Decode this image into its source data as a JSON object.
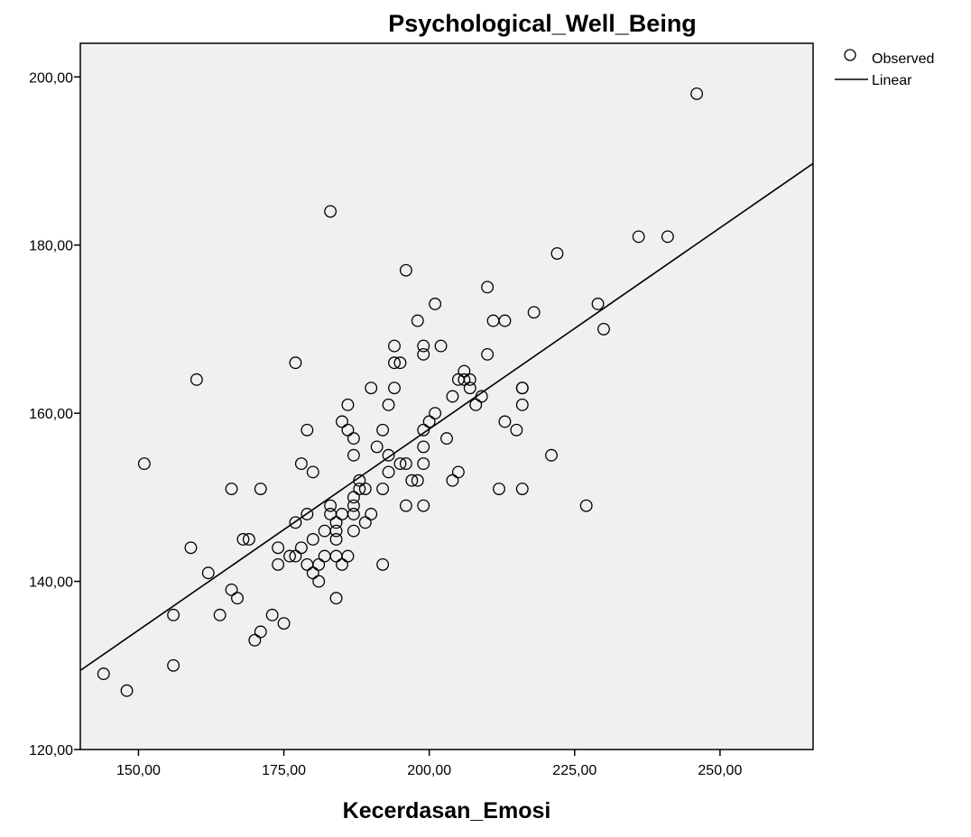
{
  "chart_data": {
    "type": "scatter",
    "title": "Psychological_Well_Being",
    "xlabel": "Kecerdasan_Emosi",
    "ylabel": "",
    "xlim": [
      140,
      266
    ],
    "ylim": [
      120,
      204
    ],
    "x_ticks": [
      150,
      175,
      200,
      225,
      250
    ],
    "x_tick_labels": [
      "150,00",
      "175,00",
      "200,00",
      "225,00",
      "250,00"
    ],
    "y_ticks": [
      120,
      140,
      160,
      180,
      200
    ],
    "y_tick_labels": [
      "120,00",
      "140,00",
      "160,00",
      "180,00",
      "200,00"
    ],
    "grid": false,
    "plot_background": "#f0f0f0",
    "legend": {
      "position": "top-right-outside",
      "entries": [
        {
          "label": "Observed",
          "marker": "open-circle"
        },
        {
          "label": "Linear",
          "marker": "line"
        }
      ]
    },
    "series": [
      {
        "name": "Observed",
        "kind": "scatter",
        "points": [
          [
            144,
            129
          ],
          [
            148,
            127
          ],
          [
            151,
            154
          ],
          [
            156,
            136
          ],
          [
            156,
            130
          ],
          [
            159,
            144
          ],
          [
            160,
            164
          ],
          [
            162,
            141
          ],
          [
            164,
            136
          ],
          [
            166,
            151
          ],
          [
            166,
            139
          ],
          [
            167,
            138
          ],
          [
            168,
            145
          ],
          [
            169,
            145
          ],
          [
            170,
            133
          ],
          [
            171,
            134
          ],
          [
            171,
            151
          ],
          [
            173,
            136
          ],
          [
            174,
            144
          ],
          [
            174,
            142
          ],
          [
            175,
            135
          ],
          [
            176,
            143
          ],
          [
            177,
            143
          ],
          [
            177,
            147
          ],
          [
            177,
            166
          ],
          [
            178,
            144
          ],
          [
            178,
            154
          ],
          [
            179,
            158
          ],
          [
            179,
            148
          ],
          [
            179,
            142
          ],
          [
            180,
            153
          ],
          [
            180,
            145
          ],
          [
            180,
            141
          ],
          [
            181,
            140
          ],
          [
            181,
            142
          ],
          [
            182,
            146
          ],
          [
            182,
            143
          ],
          [
            183,
            149
          ],
          [
            183,
            148
          ],
          [
            183,
            184
          ],
          [
            184,
            147
          ],
          [
            184,
            145
          ],
          [
            184,
            146
          ],
          [
            184,
            143
          ],
          [
            184,
            138
          ],
          [
            185,
            142
          ],
          [
            185,
            148
          ],
          [
            185,
            159
          ],
          [
            186,
            161
          ],
          [
            186,
            158
          ],
          [
            186,
            143
          ],
          [
            187,
            157
          ],
          [
            187,
            155
          ],
          [
            187,
            150
          ],
          [
            187,
            149
          ],
          [
            187,
            148
          ],
          [
            187,
            146
          ],
          [
            188,
            152
          ],
          [
            188,
            151
          ],
          [
            189,
            151
          ],
          [
            189,
            147
          ],
          [
            190,
            148
          ],
          [
            190,
            163
          ],
          [
            191,
            156
          ],
          [
            192,
            158
          ],
          [
            192,
            151
          ],
          [
            192,
            142
          ],
          [
            193,
            161
          ],
          [
            193,
            155
          ],
          [
            193,
            153
          ],
          [
            194,
            168
          ],
          [
            194,
            166
          ],
          [
            194,
            163
          ],
          [
            195,
            166
          ],
          [
            195,
            154
          ],
          [
            196,
            177
          ],
          [
            196,
            154
          ],
          [
            196,
            149
          ],
          [
            197,
            152
          ],
          [
            198,
            171
          ],
          [
            198,
            152
          ],
          [
            199,
            168
          ],
          [
            199,
            167
          ],
          [
            199,
            158
          ],
          [
            199,
            156
          ],
          [
            199,
            154
          ],
          [
            199,
            149
          ],
          [
            200,
            159
          ],
          [
            201,
            173
          ],
          [
            201,
            160
          ],
          [
            202,
            168
          ],
          [
            203,
            157
          ],
          [
            204,
            162
          ],
          [
            204,
            152
          ],
          [
            205,
            164
          ],
          [
            205,
            153
          ],
          [
            206,
            165
          ],
          [
            206,
            164
          ],
          [
            207,
            164
          ],
          [
            207,
            163
          ],
          [
            208,
            161
          ],
          [
            209,
            162
          ],
          [
            210,
            175
          ],
          [
            210,
            167
          ],
          [
            211,
            171
          ],
          [
            212,
            151
          ],
          [
            213,
            171
          ],
          [
            213,
            159
          ],
          [
            215,
            158
          ],
          [
            216,
            163
          ],
          [
            216,
            163
          ],
          [
            216,
            161
          ],
          [
            216,
            151
          ],
          [
            218,
            172
          ],
          [
            221,
            155
          ],
          [
            222,
            179
          ],
          [
            227,
            149
          ],
          [
            229,
            173
          ],
          [
            230,
            170
          ],
          [
            236,
            181
          ],
          [
            241,
            181
          ],
          [
            246,
            198
          ]
        ]
      },
      {
        "name": "Linear",
        "kind": "line",
        "intercept": 62.4,
        "slope": 0.4786
      }
    ]
  }
}
